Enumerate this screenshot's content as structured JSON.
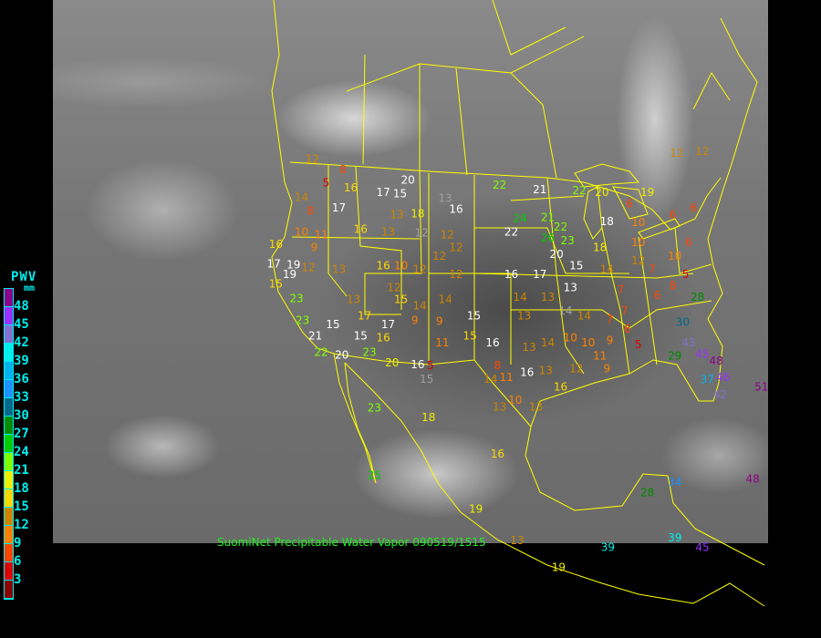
{
  "title": "SuomiNet Precipitable Water Vapor 090519/1515",
  "legend": {
    "title": "PWV",
    "unit": "mm",
    "labels": [
      "48",
      "45",
      "42",
      "39",
      "36",
      "33",
      "30",
      "27",
      "24",
      "21",
      "18",
      "15",
      "12",
      "9",
      "6",
      "3"
    ],
    "colors": [
      "#8b008b",
      "#9b30ff",
      "#8470d0",
      "#00eeee",
      "#00b2ee",
      "#1e90ff",
      "#00688b",
      "#008b00",
      "#00cd00",
      "#7fff00",
      "#eeee00",
      "#ffd700",
      "#cd8500",
      "#ff8000",
      "#ff4500",
      "#dd0000",
      "#8b0000"
    ]
  },
  "colors": {
    "border": "#ffff00",
    "legend_text": "#00eeee",
    "title_text": "#22ee22",
    "stale_station": "#ffffff",
    "gray_station": "#a0a0a0"
  },
  "stations": [
    {
      "v": "12",
      "lon": -119.8,
      "lat": 49.7
    },
    {
      "v": "5",
      "lon": -118.4,
      "lat": 47.2
    },
    {
      "v": "8",
      "lon": -116.7,
      "lat": 48.6
    },
    {
      "v": "14",
      "lon": -120.9,
      "lat": 45.7
    },
    {
      "v": "8",
      "lon": -120.0,
      "lat": 44.3
    },
    {
      "v": "16",
      "lon": -115.9,
      "lat": 46.7
    },
    {
      "v": "17",
      "lon": -112.6,
      "lat": 46.2,
      "c": "w"
    },
    {
      "v": "15",
      "lon": -110.9,
      "lat": 46.1,
      "c": "w"
    },
    {
      "v": "20",
      "lon": -110.1,
      "lat": 47.5,
      "c": "w"
    },
    {
      "v": "13",
      "lon": -106.3,
      "lat": 45.6,
      "c": "g"
    },
    {
      "v": "16",
      "lon": -105.2,
      "lat": 45.5,
      "c": "w"
    },
    {
      "v": "22",
      "lon": -100.8,
      "lat": 47.0
    },
    {
      "v": "24",
      "lon": -98.7,
      "lat": 43.5
    },
    {
      "v": "21",
      "lon": -95.9,
      "lat": 43.6
    },
    {
      "v": "22",
      "lon": -99.6,
      "lat": 42.1,
      "c": "w"
    },
    {
      "v": "21",
      "lon": -96.7,
      "lat": 46.5,
      "c": "w"
    },
    {
      "v": "22",
      "lon": -92.7,
      "lat": 46.4
    },
    {
      "v": "22",
      "lon": -94.6,
      "lat": 42.6
    },
    {
      "v": "23",
      "lon": -93.9,
      "lat": 41.2
    },
    {
      "v": "20",
      "lon": -95.0,
      "lat": 40.8,
      "c": "w"
    },
    {
      "v": "26",
      "lon": -95.9,
      "lat": 41.5
    },
    {
      "v": "20",
      "lon": -90.4,
      "lat": 46.2
    },
    {
      "v": "18",
      "lon": -89.9,
      "lat": 43.2,
      "c": "w"
    },
    {
      "v": "10",
      "lon": -86.7,
      "lat": 43.1
    },
    {
      "v": "18",
      "lon": -90.6,
      "lat": 40.5
    },
    {
      "v": "10",
      "lon": -86.7,
      "lat": 41.0
    },
    {
      "v": "6",
      "lon": -83.2,
      "lat": 43.9
    },
    {
      "v": "6",
      "lon": -81.1,
      "lat": 44.6
    },
    {
      "v": "12",
      "lon": -82.8,
      "lat": 50.3
    },
    {
      "v": "12",
      "lon": -80.2,
      "lat": 50.5
    },
    {
      "v": "6",
      "lon": -81.6,
      "lat": 41.0
    },
    {
      "v": "10",
      "lon": -83.0,
      "lat": 39.6
    },
    {
      "v": "5",
      "lon": -81.9,
      "lat": 37.7
    },
    {
      "v": "6",
      "lon": -84.8,
      "lat": 35.5
    },
    {
      "v": "8",
      "lon": -83.2,
      "lat": 36.5
    },
    {
      "v": "28",
      "lon": -80.7,
      "lat": 35.3
    },
    {
      "v": "30",
      "lon": -82.2,
      "lat": 32.7
    },
    {
      "v": "43",
      "lon": -81.6,
      "lat": 30.6
    },
    {
      "v": "45",
      "lon": -80.2,
      "lat": 29.4
    },
    {
      "v": "48",
      "lon": -78.8,
      "lat": 28.7
    },
    {
      "v": "29",
      "lon": -83.0,
      "lat": 29.2
    },
    {
      "v": "46",
      "lon": -78.1,
      "lat": 27.0
    },
    {
      "v": "42",
      "lon": -78.4,
      "lat": 25.2
    },
    {
      "v": "37",
      "lon": -79.7,
      "lat": 25.7
    },
    {
      "v": "51",
      "lon": -74.2,
      "lat": 26.0
    },
    {
      "v": "34",
      "lon": -83.0,
      "lat": 16.1
    },
    {
      "v": "39",
      "lon": -89.8,
      "lat": 9.3
    },
    {
      "v": "39",
      "lon": -83.0,
      "lat": 10.3
    },
    {
      "v": "45",
      "lon": -80.2,
      "lat": 9.3
    },
    {
      "v": "48",
      "lon": -75.1,
      "lat": 16.4
    },
    {
      "v": "28",
      "lon": -85.8,
      "lat": 15.0
    },
    {
      "v": "19",
      "lon": -94.8,
      "lat": 7.2
    },
    {
      "v": "19",
      "lon": -103.2,
      "lat": 13.3
    },
    {
      "v": "16",
      "lon": -101.0,
      "lat": 19.0
    },
    {
      "v": "18",
      "lon": -108.0,
      "lat": 22.8
    },
    {
      "v": "23",
      "lon": -113.5,
      "lat": 23.8
    },
    {
      "v": "25",
      "lon": -113.5,
      "lat": 16.8
    },
    {
      "v": "17",
      "lon": -123.7,
      "lat": 38.8,
      "c": "w"
    },
    {
      "v": "19",
      "lon": -121.7,
      "lat": 38.7,
      "c": "w"
    },
    {
      "v": "19",
      "lon": -122.1,
      "lat": 37.7,
      "c": "w"
    },
    {
      "v": "23",
      "lon": -121.4,
      "lat": 35.2
    },
    {
      "v": "23",
      "lon": -120.8,
      "lat": 32.9
    },
    {
      "v": "21",
      "lon": -119.5,
      "lat": 31.3,
      "c": "w"
    },
    {
      "v": "22",
      "lon": -118.9,
      "lat": 29.6
    },
    {
      "v": "20",
      "lon": -116.8,
      "lat": 29.3,
      "c": "w"
    },
    {
      "v": "23",
      "lon": -114.0,
      "lat": 29.6
    },
    {
      "v": "20",
      "lon": -111.7,
      "lat": 28.5
    },
    {
      "v": "16",
      "lon": -109.1,
      "lat": 28.3,
      "c": "w"
    },
    {
      "v": "5",
      "lon": -107.8,
      "lat": 28.2
    },
    {
      "v": "15",
      "lon": -108.2,
      "lat": 26.8,
      "c": "g"
    },
    {
      "v": "9",
      "lon": -109.4,
      "lat": 32.9
    },
    {
      "v": "9",
      "lon": -106.9,
      "lat": 32.8
    },
    {
      "v": "11",
      "lon": -106.6,
      "lat": 30.6
    },
    {
      "v": "15",
      "lon": -103.4,
      "lat": 33.4,
      "c": "w"
    },
    {
      "v": "15",
      "lon": -103.8,
      "lat": 31.3
    },
    {
      "v": "16",
      "lon": -101.5,
      "lat": 30.6,
      "c": "w"
    },
    {
      "v": "8",
      "lon": -101.0,
      "lat": 28.2
    },
    {
      "v": "14",
      "lon": -101.7,
      "lat": 26.8
    },
    {
      "v": "11",
      "lon": -100.1,
      "lat": 27.0
    },
    {
      "v": "16",
      "lon": -98.0,
      "lat": 27.5,
      "c": "w"
    },
    {
      "v": "10",
      "lon": -99.2,
      "lat": 24.6
    },
    {
      "v": "13",
      "lon": -100.8,
      "lat": 23.9
    },
    {
      "v": "13",
      "lon": -97.1,
      "lat": 23.9
    },
    {
      "v": "13",
      "lon": -96.1,
      "lat": 27.7
    },
    {
      "v": "16",
      "lon": -94.6,
      "lat": 26.0
    },
    {
      "v": "12",
      "lon": -93.0,
      "lat": 27.9
    },
    {
      "v": "11",
      "lon": -90.6,
      "lat": 29.2
    },
    {
      "v": "9",
      "lon": -89.9,
      "lat": 28.9
    },
    {
      "v": "9",
      "lon": -89.6,
      "lat": 30.8
    },
    {
      "v": "10",
      "lon": -91.8,
      "lat": 30.6
    },
    {
      "v": "6",
      "lon": -87.8,
      "lat": 32.0
    },
    {
      "v": "5",
      "lon": -86.7,
      "lat": 30.4
    },
    {
      "v": "7",
      "lon": -88.1,
      "lat": 33.9
    },
    {
      "v": "7",
      "lon": -88.5,
      "lat": 36.1
    },
    {
      "v": "13",
      "lon": -93.6,
      "lat": 36.3,
      "c": "w"
    },
    {
      "v": "13",
      "lon": -95.9,
      "lat": 35.3
    },
    {
      "v": "14",
      "lon": -98.7,
      "lat": 35.3
    },
    {
      "v": "13",
      "lon": -98.3,
      "lat": 33.4
    },
    {
      "v": "16",
      "lon": -99.6,
      "lat": 37.7,
      "c": "w"
    },
    {
      "v": "17",
      "lon": -96.7,
      "lat": 37.7,
      "c": "w"
    },
    {
      "v": "15",
      "lon": -93.0,
      "lat": 38.6,
      "c": "w"
    },
    {
      "v": "14",
      "lon": -89.9,
      "lat": 38.2
    },
    {
      "v": "12",
      "lon": -105.2,
      "lat": 37.7
    },
    {
      "v": "14",
      "lon": -106.3,
      "lat": 35.1
    },
    {
      "v": "14",
      "lon": -108.9,
      "lat": 33.4
    },
    {
      "v": "17",
      "lon": -112.1,
      "lat": 32.5,
      "c": "w"
    },
    {
      "v": "15",
      "lon": -114.9,
      "lat": 31.3,
      "c": "w"
    },
    {
      "v": "16",
      "lon": -113.7,
      "lat": 31.1
    },
    {
      "v": "12",
      "lon": -111.5,
      "lat": 36.3
    },
    {
      "v": "15",
      "lon": -110.8,
      "lat": 35.1
    },
    {
      "v": "13",
      "lon": -115.6,
      "lat": 35.1
    },
    {
      "v": "15",
      "lon": -117.7,
      "lat": 32.5,
      "c": "w"
    },
    {
      "v": "17",
      "lon": -114.5,
      "lat": 34.4
    },
    {
      "v": "13",
      "lon": -117.1,
      "lat": 38.2
    },
    {
      "v": "16",
      "lon": -112.6,
      "lat": 38.6
    },
    {
      "v": "10",
      "lon": -110.8,
      "lat": 38.6
    },
    {
      "v": "12",
      "lon": -108.9,
      "lat": 38.2
    },
    {
      "v": "13",
      "lon": -112.1,
      "lat": 42.1
    },
    {
      "v": "18",
      "lon": -109.1,
      "lat": 44.0
    },
    {
      "v": "13",
      "lon": -111.2,
      "lat": 43.9
    },
    {
      "v": "12",
      "lon": -108.7,
      "lat": 42.0,
      "c": "g"
    },
    {
      "v": "12",
      "lon": -105.2,
      "lat": 40.5
    },
    {
      "v": "12",
      "lon": -106.9,
      "lat": 39.6
    },
    {
      "v": "12",
      "lon": -106.1,
      "lat": 41.8
    },
    {
      "v": "16",
      "lon": -114.9,
      "lat": 42.4
    },
    {
      "v": "17",
      "lon": -117.1,
      "lat": 44.6,
      "c": "w"
    },
    {
      "v": "11",
      "lon": -118.9,
      "lat": 41.8
    },
    {
      "v": "10",
      "lon": -120.9,
      "lat": 42.1
    },
    {
      "v": "16",
      "lon": -123.5,
      "lat": 40.8
    },
    {
      "v": "9",
      "lon": -119.6,
      "lat": 40.5
    },
    {
      "v": "12",
      "lon": -120.2,
      "lat": 38.4
    },
    {
      "v": "15",
      "lon": -123.5,
      "lat": 36.7
    },
    {
      "v": "12",
      "lon": -86.7,
      "lat": 39.1
    },
    {
      "v": "7",
      "lon": -85.3,
      "lat": 38.2
    },
    {
      "v": "13",
      "lon": -97.8,
      "lat": 30.1
    },
    {
      "v": "14",
      "lon": -95.9,
      "lat": 30.6
    },
    {
      "v": "10",
      "lon": -93.6,
      "lat": 31.1
    },
    {
      "v": "14",
      "lon": -94.1,
      "lat": 33.9,
      "c": "g"
    },
    {
      "v": "14",
      "lon": -92.2,
      "lat": 33.4
    },
    {
      "v": "7",
      "lon": -89.6,
      "lat": 33.0
    },
    {
      "v": "6",
      "lon": -87.6,
      "lat": 44.0
    },
    {
      "v": "19",
      "lon": -85.8,
      "lat": 46.2
    },
    {
      "v": "13",
      "lon": -99.0,
      "lat": 10.0
    }
  ]
}
